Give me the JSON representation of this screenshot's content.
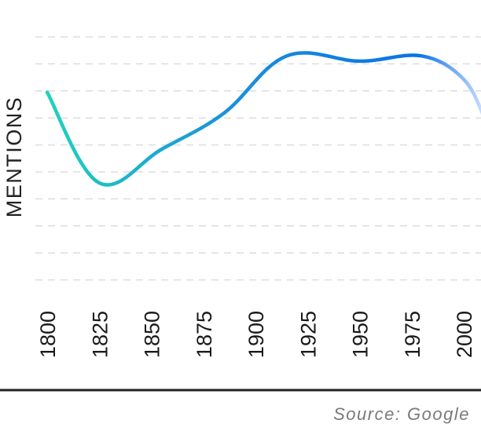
{
  "chart_data": {
    "type": "line",
    "ylabel": "MENTIONS",
    "xlabel": "",
    "title": "",
    "x_ticks": [
      "1800",
      "1825",
      "1850",
      "1875",
      "1900",
      "1925",
      "1950",
      "1975",
      "2000"
    ],
    "muted_ticks": [
      "2000"
    ],
    "grid": true,
    "y_ticks_shown": false,
    "series": [
      {
        "x": [
          1800,
          1825,
          1855,
          1885,
          1915,
          1950,
          1980,
          2000,
          2010
        ],
        "y": [
          75,
          40,
          53,
          67,
          89,
          87,
          89,
          80,
          65
        ]
      }
    ],
    "line_colors": [
      "#1fd6bd",
      "#1b93d9",
      "#0a72e6",
      "#c5d9ff"
    ],
    "gridline_color": "#dddddd",
    "axis_line_color": "#222222"
  },
  "source_text": "Source: Google"
}
